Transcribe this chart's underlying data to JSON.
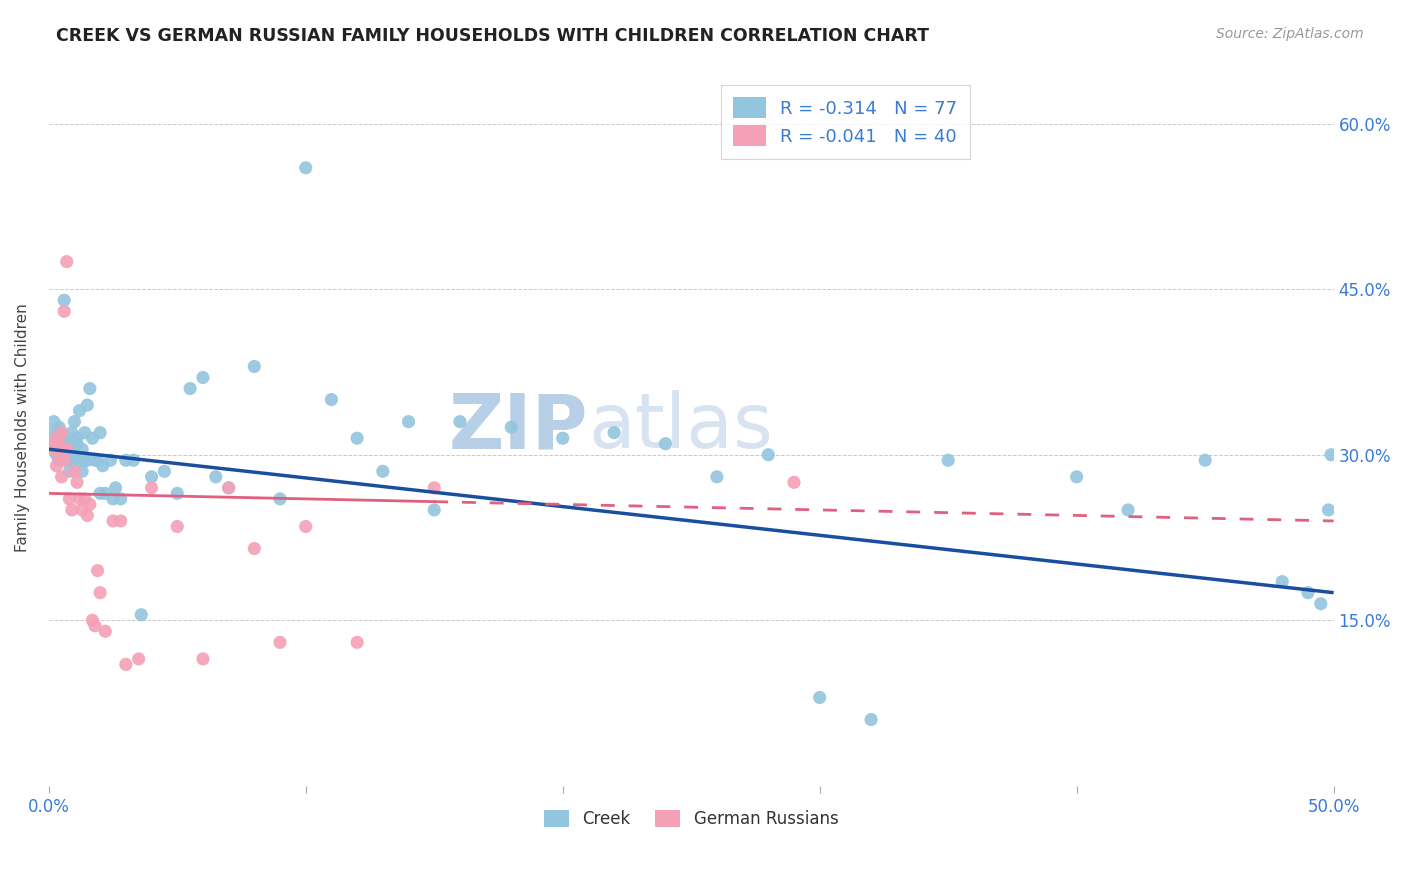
{
  "title": "CREEK VS GERMAN RUSSIAN FAMILY HOUSEHOLDS WITH CHILDREN CORRELATION CHART",
  "source": "Source: ZipAtlas.com",
  "ylabel": "Family Households with Children",
  "xlim": [
    0.0,
    0.5
  ],
  "ylim": [
    0.0,
    0.65
  ],
  "ytick_positions": [
    0.15,
    0.3,
    0.45,
    0.6
  ],
  "ytick_labels": [
    "15.0%",
    "30.0%",
    "45.0%",
    "60.0%"
  ],
  "creek_color": "#92c5de",
  "creek_line_color": "#1a4fa0",
  "german_color": "#f4a0b5",
  "german_line_color": "#e06080",
  "watermark_zip_color": "#c8d8ec",
  "watermark_atlas_color": "#c8d8ec",
  "legend_label1": "R = -0.314   N = 77",
  "legend_label2": "R = -0.041   N = 40",
  "creek_line_y0": 0.305,
  "creek_line_y1": 0.175,
  "german_line_y0": 0.265,
  "german_line_y1": 0.24,
  "creek_scatter_x": [
    0.001,
    0.002,
    0.002,
    0.003,
    0.003,
    0.004,
    0.004,
    0.005,
    0.005,
    0.006,
    0.006,
    0.007,
    0.007,
    0.008,
    0.008,
    0.009,
    0.009,
    0.01,
    0.01,
    0.011,
    0.011,
    0.012,
    0.012,
    0.013,
    0.013,
    0.014,
    0.014,
    0.015,
    0.015,
    0.016,
    0.017,
    0.018,
    0.019,
    0.02,
    0.021,
    0.022,
    0.024,
    0.026,
    0.028,
    0.03,
    0.033,
    0.036,
    0.04,
    0.045,
    0.05,
    0.055,
    0.06,
    0.065,
    0.07,
    0.08,
    0.09,
    0.1,
    0.11,
    0.12,
    0.13,
    0.14,
    0.16,
    0.18,
    0.2,
    0.22,
    0.24,
    0.26,
    0.28,
    0.3,
    0.32,
    0.35,
    0.4,
    0.42,
    0.45,
    0.48,
    0.49,
    0.495,
    0.498,
    0.499,
    0.02,
    0.025,
    0.15
  ],
  "creek_scatter_y": [
    0.32,
    0.31,
    0.33,
    0.315,
    0.3,
    0.325,
    0.295,
    0.31,
    0.32,
    0.44,
    0.3,
    0.315,
    0.295,
    0.31,
    0.285,
    0.3,
    0.32,
    0.295,
    0.33,
    0.315,
    0.31,
    0.295,
    0.34,
    0.285,
    0.305,
    0.295,
    0.32,
    0.345,
    0.295,
    0.36,
    0.315,
    0.295,
    0.295,
    0.32,
    0.29,
    0.265,
    0.295,
    0.27,
    0.26,
    0.295,
    0.295,
    0.155,
    0.28,
    0.285,
    0.265,
    0.36,
    0.37,
    0.28,
    0.27,
    0.38,
    0.26,
    0.56,
    0.35,
    0.315,
    0.285,
    0.33,
    0.33,
    0.325,
    0.315,
    0.32,
    0.31,
    0.28,
    0.3,
    0.08,
    0.06,
    0.295,
    0.28,
    0.25,
    0.295,
    0.185,
    0.175,
    0.165,
    0.25,
    0.3,
    0.265,
    0.26,
    0.25
  ],
  "german_scatter_x": [
    0.001,
    0.002,
    0.003,
    0.003,
    0.004,
    0.004,
    0.005,
    0.005,
    0.006,
    0.007,
    0.007,
    0.008,
    0.009,
    0.01,
    0.011,
    0.012,
    0.013,
    0.014,
    0.015,
    0.016,
    0.017,
    0.018,
    0.019,
    0.02,
    0.022,
    0.025,
    0.028,
    0.03,
    0.035,
    0.04,
    0.05,
    0.06,
    0.07,
    0.08,
    0.09,
    0.1,
    0.12,
    0.15,
    0.29,
    0.006
  ],
  "german_scatter_y": [
    0.305,
    0.31,
    0.315,
    0.29,
    0.3,
    0.31,
    0.32,
    0.28,
    0.295,
    0.305,
    0.475,
    0.26,
    0.25,
    0.285,
    0.275,
    0.26,
    0.25,
    0.26,
    0.245,
    0.255,
    0.15,
    0.145,
    0.195,
    0.175,
    0.14,
    0.24,
    0.24,
    0.11,
    0.115,
    0.27,
    0.235,
    0.115,
    0.27,
    0.215,
    0.13,
    0.235,
    0.13,
    0.27,
    0.275,
    0.43
  ]
}
